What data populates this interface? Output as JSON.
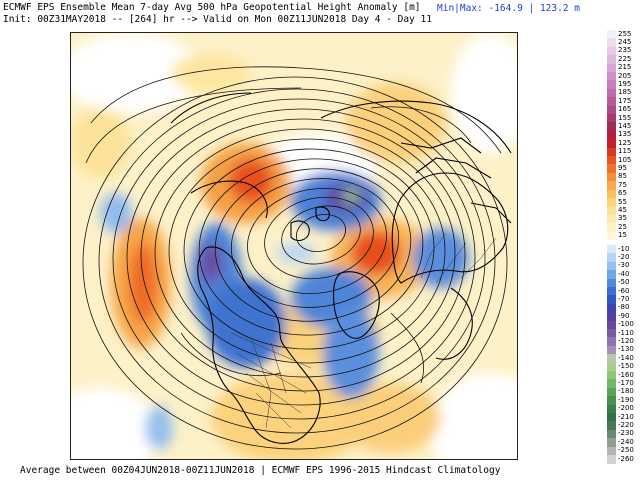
{
  "header": {
    "title": "ECMWF EPS Ensemble Mean 7-day Avg 500 hPa Geopotential Height Anomaly [m]",
    "init_line": "Init: 00Z31MAY2018 -- [264] hr --> Valid on Mon 00Z11JUN2018  Day 4 - Day 11",
    "minmax": "Min|Max: -164.9 | 123.2 m"
  },
  "footer": {
    "text": "Average between 00Z04JUN2018-00Z11JUN2018 | ECMWF EPS 1996-2015 Hindcast Climatology"
  },
  "colorbar": {
    "positive": [
      {
        "label": "255",
        "color": "#f4eef5"
      },
      {
        "label": "245",
        "color": "#eedcee"
      },
      {
        "label": "235",
        "color": "#e7c9e7"
      },
      {
        "label": "225",
        "color": "#dfb6df"
      },
      {
        "label": "215",
        "color": "#d8a3d6"
      },
      {
        "label": "205",
        "color": "#d090cd"
      },
      {
        "label": "195",
        "color": "#c97dbd"
      },
      {
        "label": "185",
        "color": "#c26aad"
      },
      {
        "label": "175",
        "color": "#b8589b"
      },
      {
        "label": "165",
        "color": "#b14887"
      },
      {
        "label": "155",
        "color": "#a93a70"
      },
      {
        "label": "145",
        "color": "#a02c5a"
      },
      {
        "label": "135",
        "color": "#b31f3c"
      },
      {
        "label": "125",
        "color": "#c8202b"
      },
      {
        "label": "115",
        "color": "#db3a20"
      },
      {
        "label": "105",
        "color": "#e85520"
      },
      {
        "label": "95",
        "color": "#f07228"
      },
      {
        "label": "85",
        "color": "#f58f38"
      },
      {
        "label": "75",
        "color": "#f8a94b"
      },
      {
        "label": "65",
        "color": "#fac060"
      },
      {
        "label": "55",
        "color": "#fcd47a"
      },
      {
        "label": "45",
        "color": "#fde296"
      },
      {
        "label": "35",
        "color": "#feeab0"
      },
      {
        "label": "25",
        "color": "#fff0c4"
      },
      {
        "label": "15",
        "color": "#fff6d8"
      }
    ],
    "negative": [
      {
        "label": "-10",
        "color": "#d8e8f8"
      },
      {
        "label": "-20",
        "color": "#b8d6f4"
      },
      {
        "label": "-30",
        "color": "#96c0ee"
      },
      {
        "label": "-40",
        "color": "#72a6e6"
      },
      {
        "label": "-50",
        "color": "#5289dc"
      },
      {
        "label": "-60",
        "color": "#3a6fcf"
      },
      {
        "label": "-70",
        "color": "#3158c0"
      },
      {
        "label": "-80",
        "color": "#3e45b0"
      },
      {
        "label": "-90",
        "color": "#543da5"
      },
      {
        "label": "-100",
        "color": "#6a479e"
      },
      {
        "label": "-110",
        "color": "#7e5aa3"
      },
      {
        "label": "-120",
        "color": "#9073ae"
      },
      {
        "label": "-130",
        "color": "#a38fbb"
      },
      {
        "label": "-140",
        "color": "#b7c8a8"
      },
      {
        "label": "-150",
        "color": "#a6cf8a"
      },
      {
        "label": "-160",
        "color": "#8cc47a"
      },
      {
        "label": "-170",
        "color": "#72b66a"
      },
      {
        "label": "-180",
        "color": "#5aa55c"
      },
      {
        "label": "-190",
        "color": "#48924f"
      },
      {
        "label": "-200",
        "color": "#3a7f45"
      },
      {
        "label": "-210",
        "color": "#356e42"
      },
      {
        "label": "-220",
        "color": "#4c7656"
      },
      {
        "label": "-230",
        "color": "#6b8a72"
      },
      {
        "label": "-240",
        "color": "#8ea092"
      },
      {
        "label": "-250",
        "color": "#b1b8b2"
      },
      {
        "label": "-260",
        "color": "#cfd2cf"
      }
    ]
  }
}
